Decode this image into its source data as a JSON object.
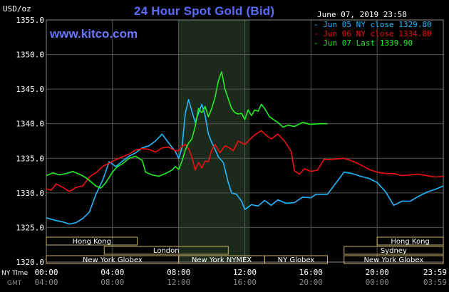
{
  "header": {
    "unit_label": "USD/oz",
    "title": "24 Hour Spot Gold (Bid)",
    "site": "www.kitco.com",
    "timestamp": "June 07, 2019 23:58"
  },
  "colors": {
    "background": "#000000",
    "grid": "#555555",
    "highlight": "#1c2a1c",
    "session_box": "#c8b46a",
    "series_jun05": "#22b8ff",
    "series_jun06": "#ee1111",
    "series_jun07": "#22ee22"
  },
  "chart_data": {
    "type": "line",
    "title": "24 Hour Spot Gold (Bid)",
    "ylabel": "USD/oz",
    "ylim": [
      1320,
      1355
    ],
    "y_ticks": [
      "1320.0",
      "1325.0",
      "1330.0",
      "1335.0",
      "1340.0",
      "1345.0",
      "1350.0",
      "1355.0"
    ],
    "x_ticks_ny": [
      "00:00",
      "04:00",
      "08:00",
      "12:00",
      "16:00",
      "20:00",
      "23:59"
    ],
    "x_ticks_gmt": [
      "04:00",
      "08:00",
      "12:00",
      "16:00",
      "20:00",
      "00:00",
      "03:59"
    ],
    "x_row_labels": [
      "NY Time",
      "GMT"
    ],
    "xlim_hours": [
      0,
      24
    ],
    "highlight_hours": [
      8.0,
      12.3
    ],
    "grid": true,
    "legend_position": "top-right",
    "legend": [
      "Jun 05 NY close 1329.80",
      "Jun 06 NY close 1334.80",
      "Jun 07 Last 1339.90"
    ],
    "sessions_left": [
      {
        "label": "Hong Kong",
        "start": 0.0,
        "end": 5.5,
        "row": 0
      },
      {
        "label": "London",
        "start": 3.5,
        "end": 11.0,
        "row": 1
      },
      {
        "label": "New York Globex",
        "start": 0.0,
        "end": 8.0,
        "row": 2
      },
      {
        "label": "New York NYMEX",
        "start": 8.0,
        "end": 13.2,
        "row": 2
      },
      {
        "label": "NY Globex",
        "start": 13.2,
        "end": 17.0,
        "row": 2
      }
    ],
    "sessions_right": [
      {
        "label": "Hong Kong",
        "start": 20.0,
        "end": 24.0,
        "row": 0
      },
      {
        "label": "Sydney",
        "start": 18.0,
        "end": 24.0,
        "row": 1
      },
      {
        "label": "New York Globex",
        "start": 18.0,
        "end": 24.0,
        "row": 2
      }
    ],
    "series": [
      {
        "name": "Jun 05 NY close 1329.80",
        "color_key": "series_jun05",
        "points": [
          [
            0,
            1326.4
          ],
          [
            0.3,
            1326.2
          ],
          [
            0.6,
            1326.0
          ],
          [
            1.0,
            1325.8
          ],
          [
            1.4,
            1325.5
          ],
          [
            1.8,
            1325.7
          ],
          [
            2.2,
            1326.3
          ],
          [
            2.6,
            1327.2
          ],
          [
            3.0,
            1329.8
          ],
          [
            3.4,
            1331.8
          ],
          [
            3.8,
            1334.5
          ],
          [
            4.2,
            1333.8
          ],
          [
            4.6,
            1334.6
          ],
          [
            5.0,
            1335.3
          ],
          [
            5.4,
            1335.8
          ],
          [
            5.8,
            1336.5
          ],
          [
            6.2,
            1336.8
          ],
          [
            6.6,
            1337.5
          ],
          [
            7.0,
            1338.5
          ],
          [
            7.4,
            1337.2
          ],
          [
            7.8,
            1336.0
          ],
          [
            8.0,
            1335.0
          ],
          [
            8.2,
            1336.5
          ],
          [
            8.4,
            1341.5
          ],
          [
            8.6,
            1343.5
          ],
          [
            8.8,
            1341.8
          ],
          [
            9.0,
            1340.2
          ],
          [
            9.2,
            1341.5
          ],
          [
            9.4,
            1342.8
          ],
          [
            9.6,
            1341.2
          ],
          [
            9.8,
            1338.5
          ],
          [
            10.0,
            1337.3
          ],
          [
            10.2,
            1336.3
          ],
          [
            10.4,
            1335.2
          ],
          [
            10.7,
            1334.4
          ],
          [
            11.0,
            1331.5
          ],
          [
            11.2,
            1330.0
          ],
          [
            11.5,
            1329.8
          ],
          [
            11.8,
            1328.8
          ],
          [
            12.0,
            1327.6
          ],
          [
            12.4,
            1328.3
          ],
          [
            12.8,
            1328.1
          ],
          [
            13.2,
            1328.9
          ],
          [
            13.6,
            1328.2
          ],
          [
            14.0,
            1329.0
          ],
          [
            14.5,
            1328.5
          ],
          [
            15.0,
            1328.6
          ],
          [
            15.5,
            1329.4
          ],
          [
            16.0,
            1329.3
          ],
          [
            16.3,
            1329.8
          ],
          [
            16.6,
            1329.8
          ],
          [
            17.0,
            1329.8
          ],
          [
            18.0,
            1333.0
          ],
          [
            18.5,
            1332.8
          ],
          [
            19.0,
            1332.4
          ],
          [
            19.5,
            1332.1
          ],
          [
            20.0,
            1331.5
          ],
          [
            20.5,
            1330.2
          ],
          [
            21.0,
            1328.2
          ],
          [
            21.5,
            1328.8
          ],
          [
            22.0,
            1328.8
          ],
          [
            22.5,
            1329.5
          ],
          [
            23.0,
            1330.1
          ],
          [
            23.5,
            1330.5
          ],
          [
            24.0,
            1331.0
          ]
        ]
      },
      {
        "name": "Jun 06 NY close 1334.80",
        "color_key": "series_jun06",
        "points": [
          [
            0,
            1330.6
          ],
          [
            0.3,
            1330.4
          ],
          [
            0.6,
            1331.3
          ],
          [
            1.0,
            1330.8
          ],
          [
            1.4,
            1330.2
          ],
          [
            1.8,
            1330.8
          ],
          [
            2.2,
            1331.0
          ],
          [
            2.6,
            1332.3
          ],
          [
            3.0,
            1332.9
          ],
          [
            3.4,
            1333.8
          ],
          [
            3.8,
            1334.3
          ],
          [
            4.2,
            1334.8
          ],
          [
            4.6,
            1335.2
          ],
          [
            5.0,
            1335.6
          ],
          [
            5.4,
            1336.2
          ],
          [
            5.8,
            1336.4
          ],
          [
            6.2,
            1336.3
          ],
          [
            6.6,
            1335.9
          ],
          [
            7.0,
            1336.5
          ],
          [
            7.4,
            1336.6
          ],
          [
            7.8,
            1336.1
          ],
          [
            8.0,
            1336.1
          ],
          [
            8.2,
            1336.7
          ],
          [
            8.4,
            1337.0
          ],
          [
            8.6,
            1336.4
          ],
          [
            8.8,
            1335.2
          ],
          [
            9.0,
            1333.3
          ],
          [
            9.2,
            1334.4
          ],
          [
            9.4,
            1333.6
          ],
          [
            9.6,
            1334.6
          ],
          [
            9.8,
            1334.5
          ],
          [
            10.0,
            1336.2
          ],
          [
            10.2,
            1337.0
          ],
          [
            10.5,
            1335.8
          ],
          [
            10.8,
            1336.8
          ],
          [
            11.0,
            1336.6
          ],
          [
            11.3,
            1336.1
          ],
          [
            11.6,
            1337.5
          ],
          [
            12.0,
            1337.0
          ],
          [
            12.3,
            1337.7
          ],
          [
            12.6,
            1338.4
          ],
          [
            13.0,
            1339.0
          ],
          [
            13.3,
            1338.3
          ],
          [
            13.6,
            1337.8
          ],
          [
            14.0,
            1338.5
          ],
          [
            14.4,
            1337.5
          ],
          [
            14.8,
            1336.0
          ],
          [
            15.0,
            1333.2
          ],
          [
            15.3,
            1332.7
          ],
          [
            15.6,
            1333.5
          ],
          [
            16.0,
            1333.1
          ],
          [
            16.4,
            1333.3
          ],
          [
            16.8,
            1334.9
          ],
          [
            17.0,
            1334.8
          ],
          [
            18.0,
            1335.0
          ],
          [
            18.4,
            1334.7
          ],
          [
            18.8,
            1334.3
          ],
          [
            19.2,
            1333.8
          ],
          [
            19.6,
            1333.3
          ],
          [
            20.0,
            1333.0
          ],
          [
            20.5,
            1332.8
          ],
          [
            21.0,
            1332.8
          ],
          [
            21.5,
            1332.5
          ],
          [
            22.0,
            1332.6
          ],
          [
            22.5,
            1332.7
          ],
          [
            23.0,
            1332.5
          ],
          [
            23.5,
            1332.3
          ],
          [
            24.0,
            1332.4
          ]
        ]
      },
      {
        "name": "Jun 07 Last 1339.90",
        "color_key": "series_jun07",
        "points": [
          [
            0,
            1332.5
          ],
          [
            0.4,
            1332.9
          ],
          [
            0.8,
            1332.6
          ],
          [
            1.2,
            1332.8
          ],
          [
            1.6,
            1333.1
          ],
          [
            2.0,
            1332.7
          ],
          [
            2.4,
            1332.2
          ],
          [
            2.8,
            1331.4
          ],
          [
            3.0,
            1331.0
          ],
          [
            3.3,
            1330.7
          ],
          [
            3.6,
            1331.5
          ],
          [
            4.0,
            1333.0
          ],
          [
            4.3,
            1333.8
          ],
          [
            4.6,
            1334.2
          ],
          [
            5.0,
            1335.0
          ],
          [
            5.4,
            1335.3
          ],
          [
            5.8,
            1334.7
          ],
          [
            6.0,
            1333.0
          ],
          [
            6.4,
            1332.6
          ],
          [
            6.8,
            1332.4
          ],
          [
            7.2,
            1332.8
          ],
          [
            7.6,
            1333.3
          ],
          [
            7.8,
            1333.8
          ],
          [
            8.0,
            1333.4
          ],
          [
            8.2,
            1334.6
          ],
          [
            8.4,
            1336.2
          ],
          [
            8.6,
            1337.2
          ],
          [
            8.8,
            1337.8
          ],
          [
            9.0,
            1339.6
          ],
          [
            9.2,
            1342.2
          ],
          [
            9.4,
            1341.6
          ],
          [
            9.6,
            1342.5
          ],
          [
            9.8,
            1341.0
          ],
          [
            10.0,
            1342.2
          ],
          [
            10.2,
            1343.8
          ],
          [
            10.4,
            1346.2
          ],
          [
            10.6,
            1347.5
          ],
          [
            10.8,
            1345.0
          ],
          [
            11.0,
            1343.6
          ],
          [
            11.2,
            1342.2
          ],
          [
            11.4,
            1341.6
          ],
          [
            11.6,
            1341.4
          ],
          [
            11.8,
            1341.5
          ],
          [
            12.0,
            1340.6
          ],
          [
            12.2,
            1342.0
          ],
          [
            12.4,
            1341.2
          ],
          [
            12.6,
            1342.0
          ],
          [
            12.8,
            1341.8
          ],
          [
            13.0,
            1342.8
          ],
          [
            13.2,
            1342.2
          ],
          [
            13.5,
            1341.0
          ],
          [
            13.8,
            1340.5
          ],
          [
            14.0,
            1340.2
          ],
          [
            14.3,
            1339.5
          ],
          [
            14.6,
            1339.8
          ],
          [
            15.0,
            1339.6
          ],
          [
            15.5,
            1340.2
          ],
          [
            16.0,
            1339.9
          ],
          [
            16.5,
            1340.0
          ],
          [
            17.0,
            1340.0
          ]
        ]
      }
    ]
  }
}
